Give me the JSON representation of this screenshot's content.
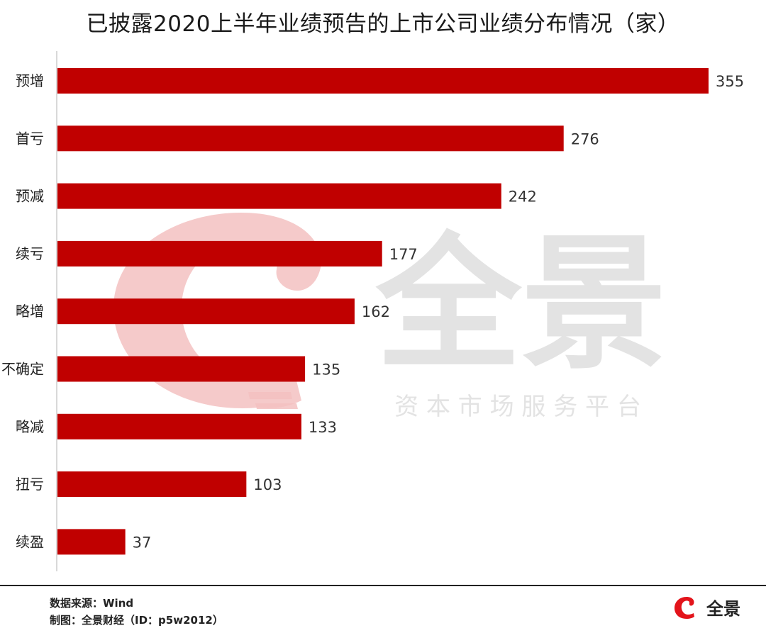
{
  "title": "已披露2020上半年业绩预告的上市公司业绩分布情况（家）",
  "watermark": {
    "brand": "全景",
    "tagline": "资 本 市 场 服 务 平 台"
  },
  "footer": {
    "source": "数据来源：Wind",
    "credit": "制图：全景财经（ID：p5w2012）",
    "logo_text": "全景"
  },
  "colors": {
    "bar": "#c00000",
    "axis": "#d9d9d9",
    "watermark_red": "#f3c1c1",
    "watermark_gray": "#e3e3e3",
    "logo_red": "#e3141b"
  },
  "chart_data": {
    "type": "bar",
    "orientation": "horizontal",
    "categories": [
      "预增",
      "首亏",
      "预减",
      "续亏",
      "略增",
      "不确定",
      "略减",
      "扭亏",
      "续盈"
    ],
    "values": [
      355,
      276,
      242,
      177,
      162,
      135,
      133,
      103,
      37
    ],
    "xlim": [
      0,
      355
    ],
    "grid": false,
    "legend": "none",
    "data_labels": true
  }
}
